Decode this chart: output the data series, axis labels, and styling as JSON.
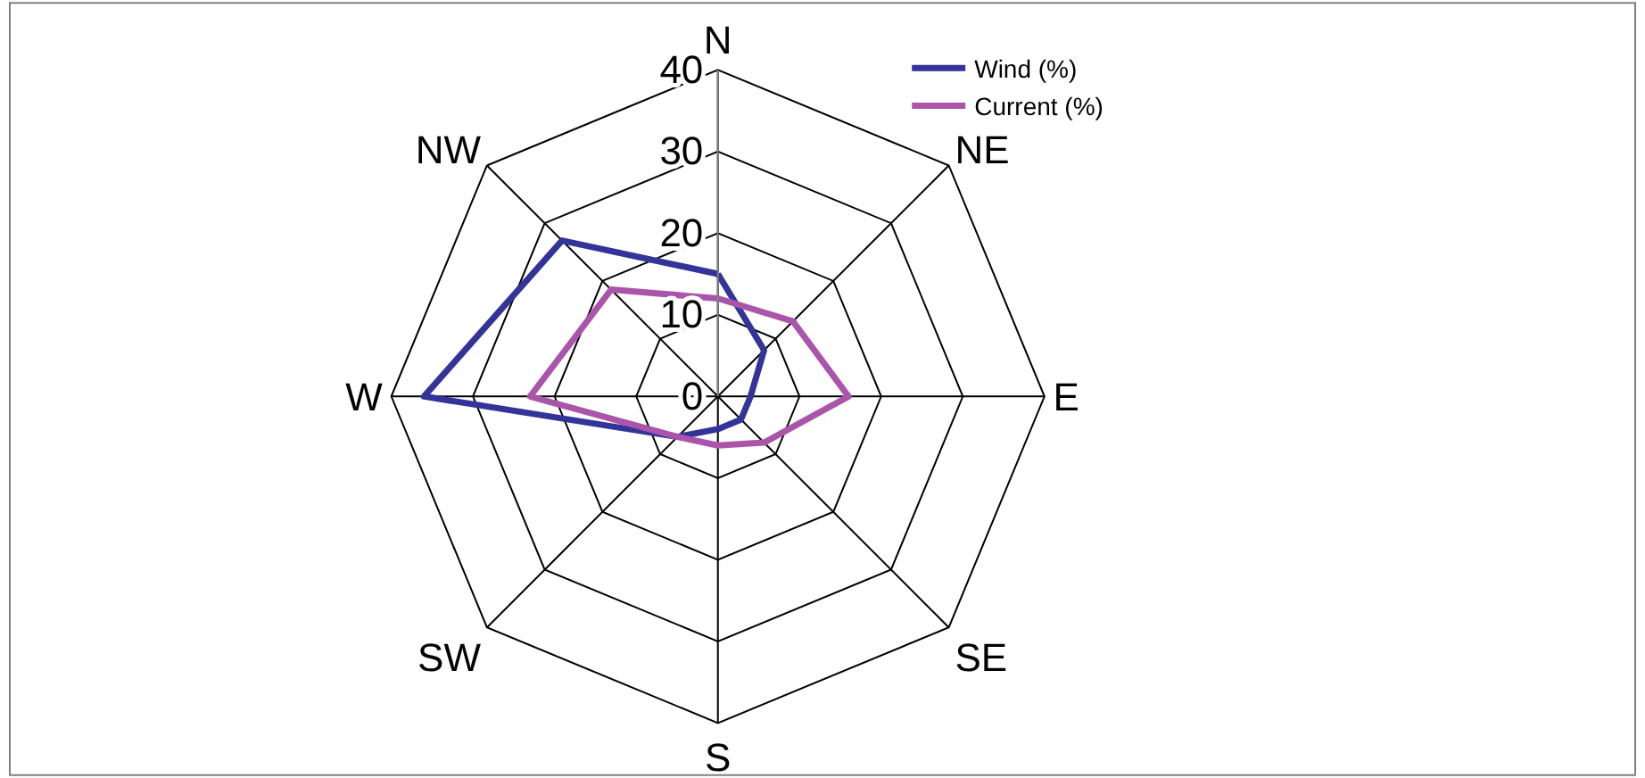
{
  "chart_data": {
    "type": "radar",
    "categories": [
      "N",
      "NE",
      "E",
      "SE",
      "S",
      "SW",
      "W",
      "NW"
    ],
    "series": [
      {
        "name": "Wind (%)",
        "color": "#333399",
        "values": [
          15,
          8,
          4,
          4,
          4,
          7,
          36,
          27
        ]
      },
      {
        "name": "Current (%)",
        "color": "#aa55aa",
        "values": [
          12,
          13,
          16,
          8,
          6,
          7,
          23,
          18.5
        ]
      }
    ],
    "ylim": [
      0,
      40
    ],
    "yticks": [
      0,
      10,
      20,
      30,
      40
    ],
    "legend": "top right",
    "grid": true
  }
}
